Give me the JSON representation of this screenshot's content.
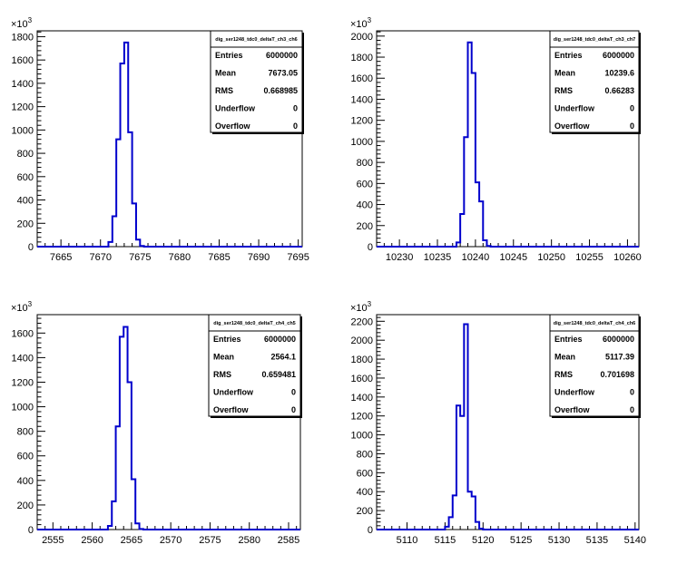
{
  "exponent_label": "×10",
  "exponent_power": "3",
  "stat_labels": {
    "entries": "Entries",
    "mean": "Mean",
    "rms": "RMS",
    "underflow": "Underflow",
    "overflow": "Overflow"
  },
  "chart_data": [
    {
      "type": "histogram",
      "stats_title": "dig_ser1248_tdc0_deltaT_ch3_ch6",
      "stats": {
        "entries": "6000000",
        "mean": "7673.05",
        "rms": "0.668985",
        "underflow": "0",
        "overflow": "0"
      },
      "xlim": [
        7662,
        7695.5
      ],
      "ylim": [
        0,
        1850
      ],
      "xticks": [
        7665,
        7670,
        7675,
        7680,
        7685,
        7690,
        7695
      ],
      "yticks": [
        0,
        200,
        400,
        600,
        800,
        1000,
        1200,
        1400,
        1600,
        1800
      ],
      "bin_width": 0.5,
      "bins": [
        [
          7671.0,
          40
        ],
        [
          7671.5,
          260
        ],
        [
          7672.0,
          920
        ],
        [
          7672.5,
          1570
        ],
        [
          7673.0,
          1750
        ],
        [
          7673.5,
          980
        ],
        [
          7674.0,
          370
        ],
        [
          7674.5,
          60
        ],
        [
          7675.0,
          6
        ]
      ]
    },
    {
      "type": "histogram",
      "stats_title": "dig_ser1248_tdc0_deltaT_ch3_ch7",
      "stats": {
        "entries": "6000000",
        "mean": "10239.6",
        "rms": "0.66283",
        "underflow": "0",
        "overflow": "0"
      },
      "xlim": [
        10227,
        10261.5
      ],
      "ylim": [
        0,
        2050
      ],
      "xticks": [
        10230,
        10235,
        10240,
        10245,
        10250,
        10255,
        10260
      ],
      "yticks": [
        0,
        200,
        400,
        600,
        800,
        1000,
        1200,
        1400,
        1600,
        1800,
        2000
      ],
      "bin_width": 0.5,
      "bins": [
        [
          10237.5,
          40
        ],
        [
          10238.0,
          310
        ],
        [
          10238.5,
          1040
        ],
        [
          10239.0,
          1940
        ],
        [
          10239.5,
          1650
        ],
        [
          10240.0,
          610
        ],
        [
          10240.5,
          430
        ],
        [
          10241.0,
          60
        ],
        [
          10241.5,
          6
        ]
      ]
    },
    {
      "type": "histogram",
      "stats_title": "dig_ser1248_tdc0_deltaT_ch4_ch5",
      "stats": {
        "entries": "6000000",
        "mean": "2564.1",
        "rms": "0.659481",
        "underflow": "0",
        "overflow": "0"
      },
      "xlim": [
        2553,
        2586.5
      ],
      "ylim": [
        0,
        1750
      ],
      "xticks": [
        2555,
        2560,
        2565,
        2570,
        2575,
        2580,
        2585
      ],
      "yticks": [
        0,
        200,
        400,
        600,
        800,
        1000,
        1200,
        1400,
        1600
      ],
      "bin_width": 0.5,
      "bins": [
        [
          2562.0,
          30
        ],
        [
          2562.5,
          230
        ],
        [
          2563.0,
          840
        ],
        [
          2563.5,
          1570
        ],
        [
          2564.0,
          1650
        ],
        [
          2564.5,
          1200
        ],
        [
          2565.0,
          410
        ],
        [
          2565.5,
          50
        ],
        [
          2566.0,
          5
        ]
      ]
    },
    {
      "type": "histogram",
      "stats_title": "dig_ser1248_tdc0_deltaT_ch4_ch6",
      "stats": {
        "entries": "6000000",
        "mean": "5117.39",
        "rms": "0.701698",
        "underflow": "0",
        "overflow": "0"
      },
      "xlim": [
        5106,
        5140.5
      ],
      "ylim": [
        0,
        2270
      ],
      "xticks": [
        5110,
        5115,
        5120,
        5125,
        5130,
        5135,
        5140
      ],
      "yticks": [
        0,
        200,
        400,
        600,
        800,
        1000,
        1200,
        1400,
        1600,
        1800,
        2000,
        2200
      ],
      "bin_width": 0.5,
      "bins": [
        [
          5115.0,
          30
        ],
        [
          5115.5,
          130
        ],
        [
          5116.0,
          360
        ],
        [
          5116.5,
          1310
        ],
        [
          5117.0,
          1200
        ],
        [
          5117.5,
          2170
        ],
        [
          5118.0,
          400
        ],
        [
          5118.5,
          350
        ],
        [
          5119.0,
          80
        ],
        [
          5119.5,
          10
        ]
      ]
    }
  ]
}
